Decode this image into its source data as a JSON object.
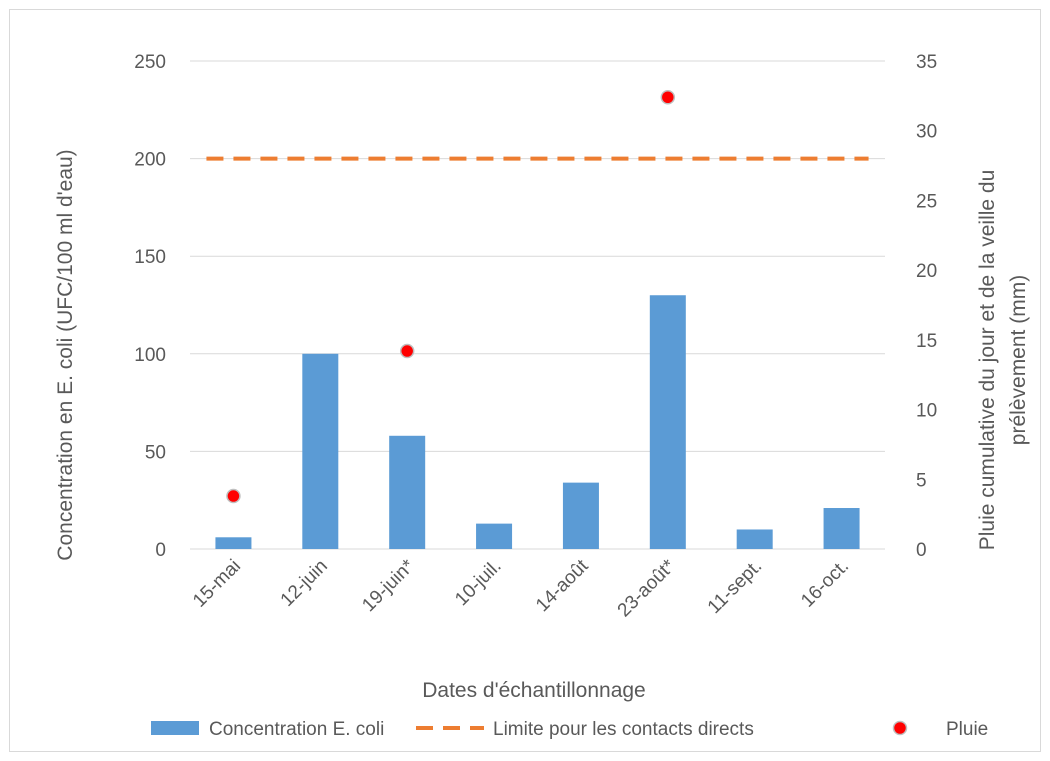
{
  "chart_data": {
    "type": "bar",
    "categories": [
      "15-mai",
      "12-juin",
      "19-juin*",
      "10-juil.",
      "14-août",
      "23-août*",
      "11-sept.",
      "16-oct."
    ],
    "series": [
      {
        "name": "Concentration E. coli",
        "type": "bar",
        "axis": "left",
        "values": [
          6,
          100,
          58,
          13,
          34,
          130,
          10,
          21
        ],
        "color": "#5b9bd5"
      },
      {
        "name": "Limite pour les contacts directs",
        "type": "line",
        "style": "dashed",
        "axis": "left",
        "values": [
          200,
          200,
          200,
          200,
          200,
          200,
          200,
          200
        ],
        "color": "#ed7d31"
      },
      {
        "name": "Pluie",
        "type": "scatter",
        "axis": "right",
        "points": [
          {
            "category": "15-mai",
            "value": 3.8
          },
          {
            "category": "19-juin*",
            "value": 14.2
          },
          {
            "category": "23-août*",
            "value": 32.4
          }
        ],
        "color": "#ff0000"
      }
    ],
    "xlabel": "Dates d'échantillonnage",
    "ylabel": "Concentration en E. coli (UFC/100 ml d'eau)",
    "y2label_lines": [
      "Pluie cumulative du jour et de la veille du",
      "prélèvement (mm)"
    ],
    "ylim": [
      0,
      250
    ],
    "yticks": [
      0,
      50,
      100,
      150,
      200,
      250
    ],
    "y2lim": [
      0,
      35
    ],
    "y2ticks": [
      0,
      5,
      10,
      15,
      20,
      25,
      30,
      35
    ],
    "grid": true,
    "legend_position": "bottom"
  }
}
